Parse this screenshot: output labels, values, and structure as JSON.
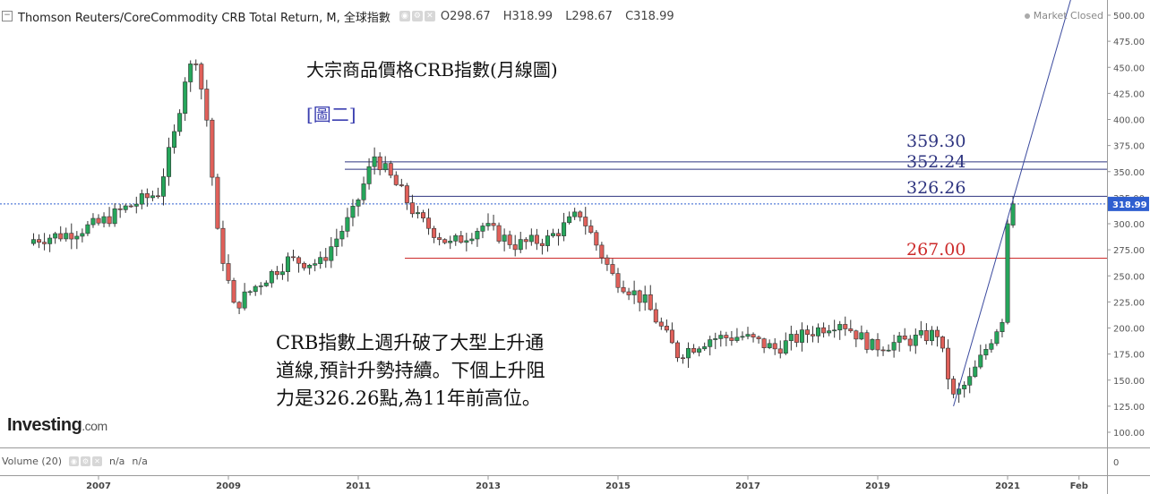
{
  "header": {
    "collapse_icon": "minus-square-icon",
    "title": "Thomson Reuters/CoreCommodity CRB Total Return, M, 全球指數",
    "open": "O298.67",
    "high": "H318.99",
    "low": "L298.67",
    "close": "C318.99",
    "market_status": "Market Closed"
  },
  "annotations": {
    "title": "大宗商品價格CRB指數(月線圖)",
    "figure_label": "[圖二]",
    "note_lines": [
      "CRB指數上週升破了大型上升通",
      "道線,預計升勢持續。下個上升阻",
      "力是326.26點,為11年前高位。"
    ]
  },
  "volume": {
    "label": "Volume (20)",
    "value1": "n/a",
    "value2": "n/a"
  },
  "logo": {
    "text": "Investing",
    "suffix": ".com"
  },
  "colors": {
    "up": "#26a65b",
    "down": "#e0605a",
    "resistance": "#2f3580",
    "support": "#cc2a2a",
    "price_tag": "#2f5fd0"
  },
  "chart_data": {
    "type": "candlestick",
    "title": "Thomson Reuters/CoreCommodity CRB Total Return, M, 全球指數",
    "interval": "monthly",
    "x_tick_labels": [
      "2007",
      "2009",
      "2011",
      "2013",
      "2015",
      "2017",
      "2019",
      "2021",
      "Feb"
    ],
    "y_tick_labels": [
      "500.00",
      "475.00",
      "450.00",
      "425.00",
      "400.00",
      "375.00",
      "350.00",
      "325.00",
      "300.00",
      "275.00",
      "250.00",
      "225.00",
      "200.00",
      "175.00",
      "150.00",
      "125.00",
      "100.00"
    ],
    "y_range": [
      100,
      500
    ],
    "volume_axis_label": "0",
    "last_price": "318.99",
    "horizontal_levels": [
      {
        "value": 359.3,
        "label": "359.30",
        "color": "resistance"
      },
      {
        "value": 352.24,
        "label": "352.24",
        "color": "resistance"
      },
      {
        "value": 326.26,
        "label": "326.26",
        "color": "resistance"
      },
      {
        "value": 267.0,
        "label": "267.00",
        "color": "support"
      }
    ],
    "trendline": {
      "from": [
        "2020-03",
        125
      ],
      "to": [
        "2021-02",
        323
      ]
    },
    "closes": [
      {
        "date": "2006-01",
        "close": 285
      },
      {
        "date": "2006-07",
        "close": 290
      },
      {
        "date": "2007-01",
        "close": 300
      },
      {
        "date": "2007-06",
        "close": 315
      },
      {
        "date": "2007-12",
        "close": 330
      },
      {
        "date": "2008-03",
        "close": 385
      },
      {
        "date": "2008-05",
        "close": 440
      },
      {
        "date": "2008-07",
        "close": 460
      },
      {
        "date": "2008-09",
        "close": 400
      },
      {
        "date": "2008-11",
        "close": 290
      },
      {
        "date": "2009-02",
        "close": 220
      },
      {
        "date": "2009-06",
        "close": 240
      },
      {
        "date": "2009-12",
        "close": 265
      },
      {
        "date": "2010-06",
        "close": 262
      },
      {
        "date": "2010-12",
        "close": 310
      },
      {
        "date": "2011-04",
        "close": 365
      },
      {
        "date": "2011-09",
        "close": 330
      },
      {
        "date": "2011-12",
        "close": 305
      },
      {
        "date": "2012-06",
        "close": 280
      },
      {
        "date": "2012-12",
        "close": 298
      },
      {
        "date": "2013-06",
        "close": 280
      },
      {
        "date": "2013-12",
        "close": 285
      },
      {
        "date": "2014-06",
        "close": 310
      },
      {
        "date": "2014-12",
        "close": 250
      },
      {
        "date": "2015-06",
        "close": 225
      },
      {
        "date": "2015-12",
        "close": 175
      },
      {
        "date": "2016-06",
        "close": 190
      },
      {
        "date": "2016-12",
        "close": 192
      },
      {
        "date": "2017-06",
        "close": 180
      },
      {
        "date": "2017-12",
        "close": 195
      },
      {
        "date": "2018-06",
        "close": 207
      },
      {
        "date": "2018-12",
        "close": 182
      },
      {
        "date": "2019-06",
        "close": 187
      },
      {
        "date": "2019-12",
        "close": 195
      },
      {
        "date": "2020-03",
        "close": 133
      },
      {
        "date": "2020-06",
        "close": 150
      },
      {
        "date": "2020-12",
        "close": 210
      },
      {
        "date": "2021-01",
        "close": 300
      },
      {
        "date": "2021-02",
        "close": 318.99
      }
    ]
  }
}
